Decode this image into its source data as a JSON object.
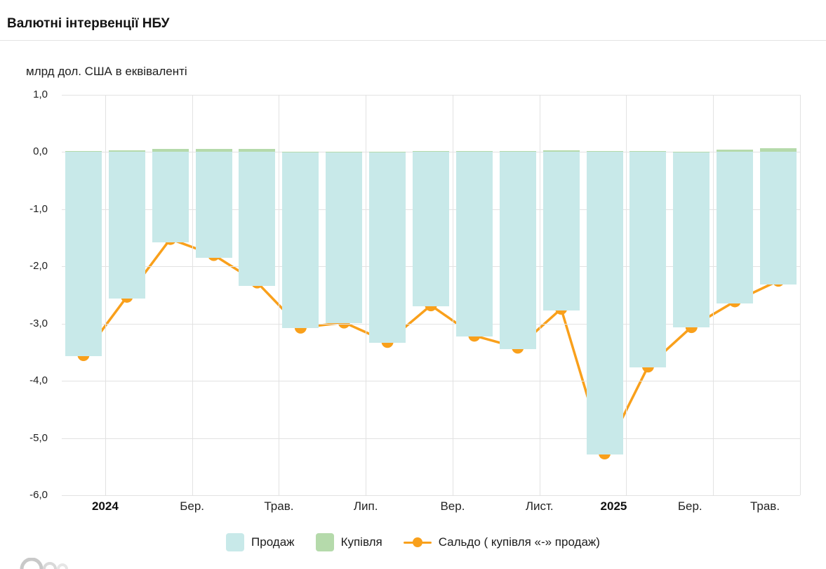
{
  "header": {
    "title": "Валютні інтервенції НБУ"
  },
  "chart_data": {
    "type": "bar",
    "subtype": "negative-columns-with-line",
    "title": "Валютні інтервенції НБУ",
    "unit_label": "млрд дол. США в еквіваленті",
    "n_categories": 17,
    "grid": true,
    "legend_position": "bottom",
    "ylim": [
      -6.0,
      1.0
    ],
    "y_ticks": [
      {
        "label": "1,0",
        "value": 1.0
      },
      {
        "label": "0,0",
        "value": 0.0
      },
      {
        "label": "-1,0",
        "value": -1.0
      },
      {
        "label": "-2,0",
        "value": -2.0
      },
      {
        "label": "-3,0",
        "value": -3.0
      },
      {
        "label": "-4,0",
        "value": -4.0
      },
      {
        "label": "-5,0",
        "value": -5.0
      },
      {
        "label": "-6,0",
        "value": -6.0
      }
    ],
    "x_tick_labels": [
      {
        "label": "2024",
        "bold": true,
        "boundary": 1
      },
      {
        "label": "Бер.",
        "bold": false,
        "boundary": 3
      },
      {
        "label": "Трав.",
        "bold": false,
        "boundary": 5
      },
      {
        "label": "Лип.",
        "bold": false,
        "boundary": 7
      },
      {
        "label": "Вер.",
        "bold": false,
        "boundary": 9
      },
      {
        "label": "Лист.",
        "bold": false,
        "boundary": 11
      },
      {
        "label": "2025",
        "bold": true,
        "boundary": 13
      },
      {
        "label": "Бер.",
        "bold": false,
        "boundary": 15
      },
      {
        "label": "Трав.",
        "bold": false,
        "boundary": 17
      }
    ],
    "series": [
      {
        "name": "Продаж",
        "type": "bar",
        "color": "#c8e9e9",
        "values": [
          -3.57,
          -2.56,
          -1.58,
          -1.85,
          -2.34,
          -3.08,
          -2.99,
          -3.33,
          -2.7,
          -3.23,
          -3.44,
          -2.77,
          -5.29,
          -3.77,
          -3.07,
          -2.65,
          -2.32
        ]
      },
      {
        "name": "Купівля",
        "type": "bar",
        "color": "#b5daab",
        "values": [
          0.02,
          0.03,
          0.06,
          0.05,
          0.06,
          0.01,
          0.01,
          0.01,
          0.02,
          0.02,
          0.02,
          0.03,
          0.02,
          0.02,
          0.01,
          0.04,
          0.07
        ]
      },
      {
        "name": "Сальдо ( купівля «-» продаж)",
        "type": "line",
        "color": "#f9a01b",
        "values": [
          -3.55,
          -2.53,
          -1.52,
          -1.8,
          -2.28,
          -3.07,
          -2.98,
          -3.32,
          -2.68,
          -3.21,
          -3.42,
          -2.74,
          -5.27,
          -3.75,
          -3.06,
          -2.61,
          -2.25
        ]
      }
    ]
  },
  "colors": {
    "grid": "#e2e2e2",
    "divider": "#e3e3e3",
    "text": "#222222",
    "watermark": "#c9c9c9"
  }
}
